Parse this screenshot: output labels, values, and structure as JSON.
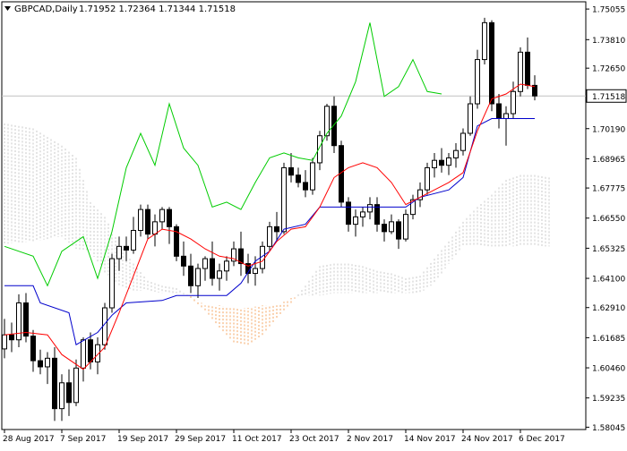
{
  "header": {
    "symbol_line": "GBPCAD,Daily",
    "ohlc": "1.71952 1.72364 1.71344 1.71518"
  },
  "colors": {
    "background": "#ffffff",
    "axis": "#000000",
    "bull_candle": "#ffffff",
    "bear_candle": "#000000",
    "tenkan": "#ff0000",
    "kijun": "#0000cc",
    "chikou": "#00cc00",
    "cloud_bull": "#f4a460",
    "cloud_bear": "#c8c8c8",
    "price_line": "#c0c0c0"
  },
  "chart_data": {
    "type": "candlestick",
    "symbol": "GBPCAD",
    "timeframe": "Daily",
    "current_price": "1.71518",
    "y_ticks": [
      "1.75055",
      "1.73810",
      "1.72650",
      "1.71518",
      "1.70190",
      "1.68965",
      "1.67775",
      "1.66550",
      "1.65325",
      "1.64100",
      "1.62910",
      "1.61685",
      "1.60460",
      "1.59235",
      "1.58045"
    ],
    "ylim": [
      1.5795,
      1.7535
    ],
    "x_ticks": [
      {
        "label": "28 Aug 2017",
        "index": 0
      },
      {
        "label": "7 Sep 2017",
        "index": 8
      },
      {
        "label": "19 Sep 2017",
        "index": 16
      },
      {
        "label": "29 Sep 2017",
        "index": 24
      },
      {
        "label": "11 Oct 2017",
        "index": 32
      },
      {
        "label": "23 Oct 2017",
        "index": 40
      },
      {
        "label": "2 Nov 2017",
        "index": 48
      },
      {
        "label": "14 Nov 2017",
        "index": 56
      },
      {
        "label": "24 Nov 2017",
        "index": 64
      },
      {
        "label": "6 Dec 2017",
        "index": 72
      }
    ],
    "candles": [
      [
        1.6123,
        1.6245,
        1.6085,
        1.618
      ],
      [
        1.618,
        1.623,
        1.611,
        1.616
      ],
      [
        1.616,
        1.6345,
        1.613,
        1.631
      ],
      [
        1.631,
        1.635,
        1.615,
        1.6175
      ],
      [
        1.6175,
        1.62,
        1.603,
        1.6075
      ],
      [
        1.6075,
        1.612,
        1.602,
        1.605
      ],
      [
        1.605,
        1.611,
        1.598,
        1.6085
      ],
      [
        1.6085,
        1.613,
        1.583,
        1.588
      ],
      [
        1.588,
        1.602,
        1.583,
        1.5985
      ],
      [
        1.5985,
        1.604,
        1.585,
        1.5905
      ],
      [
        1.5905,
        1.608,
        1.589,
        1.6045
      ],
      [
        1.6045,
        1.617,
        1.599,
        1.616
      ],
      [
        1.616,
        1.619,
        1.604,
        1.607
      ],
      [
        1.607,
        1.617,
        1.602,
        1.614
      ],
      [
        1.614,
        1.631,
        1.612,
        1.629
      ],
      [
        1.629,
        1.651,
        1.627,
        1.649
      ],
      [
        1.649,
        1.658,
        1.644,
        1.654
      ],
      [
        1.654,
        1.658,
        1.648,
        1.6525
      ],
      [
        1.6525,
        1.666,
        1.651,
        1.6605
      ],
      [
        1.6605,
        1.671,
        1.658,
        1.669
      ],
      [
        1.669,
        1.671,
        1.657,
        1.659
      ],
      [
        1.659,
        1.667,
        1.654,
        1.664
      ],
      [
        1.664,
        1.67,
        1.661,
        1.669
      ],
      [
        1.669,
        1.67,
        1.655,
        1.662
      ],
      [
        1.662,
        1.663,
        1.648,
        1.65
      ],
      [
        1.65,
        1.656,
        1.642,
        1.646
      ],
      [
        1.646,
        1.651,
        1.635,
        1.638
      ],
      [
        1.638,
        1.647,
        1.633,
        1.645
      ],
      [
        1.645,
        1.65,
        1.64,
        1.649
      ],
      [
        1.649,
        1.656,
        1.638,
        1.641
      ],
      [
        1.641,
        1.647,
        1.636,
        1.644
      ],
      [
        1.644,
        1.65,
        1.64,
        1.648
      ],
      [
        1.648,
        1.656,
        1.646,
        1.653
      ],
      [
        1.653,
        1.66,
        1.642,
        1.647
      ],
      [
        1.647,
        1.651,
        1.639,
        1.643
      ],
      [
        1.643,
        1.65,
        1.638,
        1.645
      ],
      [
        1.645,
        1.656,
        1.643,
        1.654
      ],
      [
        1.654,
        1.664,
        1.652,
        1.662
      ],
      [
        1.662,
        1.668,
        1.656,
        1.66
      ],
      [
        1.66,
        1.688,
        1.659,
        1.686
      ],
      [
        1.686,
        1.692,
        1.68,
        1.683
      ],
      [
        1.683,
        1.686,
        1.678,
        1.68
      ],
      [
        1.68,
        1.685,
        1.674,
        1.677
      ],
      [
        1.677,
        1.69,
        1.675,
        1.688
      ],
      [
        1.688,
        1.701,
        1.685,
        1.699
      ],
      [
        1.699,
        1.712,
        1.697,
        1.711
      ],
      [
        1.711,
        1.715,
        1.692,
        1.695
      ],
      [
        1.695,
        1.697,
        1.67,
        1.672
      ],
      [
        1.672,
        1.674,
        1.66,
        1.663
      ],
      [
        1.663,
        1.669,
        1.658,
        1.666
      ],
      [
        1.666,
        1.67,
        1.662,
        1.668
      ],
      [
        1.668,
        1.674,
        1.665,
        1.671
      ],
      [
        1.671,
        1.674,
        1.66,
        1.663
      ],
      [
        1.663,
        1.665,
        1.656,
        1.66
      ],
      [
        1.66,
        1.667,
        1.659,
        1.664
      ],
      [
        1.664,
        1.665,
        1.653,
        1.657
      ],
      [
        1.657,
        1.669,
        1.656,
        1.667
      ],
      [
        1.667,
        1.675,
        1.665,
        1.673
      ],
      [
        1.673,
        1.68,
        1.67,
        1.677
      ],
      [
        1.677,
        1.688,
        1.675,
        1.686
      ],
      [
        1.686,
        1.692,
        1.682,
        1.689
      ],
      [
        1.689,
        1.694,
        1.684,
        1.687
      ],
      [
        1.687,
        1.692,
        1.683,
        1.69
      ],
      [
        1.69,
        1.696,
        1.686,
        1.693
      ],
      [
        1.693,
        1.702,
        1.691,
        1.7
      ],
      [
        1.7,
        1.715,
        1.699,
        1.712
      ],
      [
        1.712,
        1.734,
        1.71,
        1.73
      ],
      [
        1.73,
        1.747,
        1.728,
        1.745
      ],
      [
        1.745,
        1.746,
        1.709,
        1.712
      ],
      [
        1.712,
        1.716,
        1.702,
        1.706
      ],
      [
        1.706,
        1.711,
        1.695,
        1.708
      ],
      [
        1.708,
        1.721,
        1.706,
        1.717
      ],
      [
        1.717,
        1.735,
        1.715,
        1.733
      ],
      [
        1.733,
        1.739,
        1.718,
        1.7195
      ],
      [
        1.7195,
        1.7236,
        1.7134,
        1.7152
      ]
    ],
    "tenkan": [
      [
        0,
        1.618
      ],
      [
        3,
        1.619
      ],
      [
        6,
        1.618
      ],
      [
        8,
        1.61
      ],
      [
        11,
        1.604
      ],
      [
        14,
        1.613
      ],
      [
        16,
        1.627
      ],
      [
        18,
        1.642
      ],
      [
        20,
        1.657
      ],
      [
        22,
        1.661
      ],
      [
        24,
        1.66
      ],
      [
        26,
        1.657
      ],
      [
        28,
        1.653
      ],
      [
        30,
        1.65
      ],
      [
        32,
        1.649
      ],
      [
        34,
        1.646
      ],
      [
        36,
        1.648
      ],
      [
        38,
        1.656
      ],
      [
        40,
        1.661
      ],
      [
        42,
        1.662
      ],
      [
        44,
        1.67
      ],
      [
        46,
        1.682
      ],
      [
        48,
        1.686
      ],
      [
        50,
        1.688
      ],
      [
        52,
        1.686
      ],
      [
        54,
        1.68
      ],
      [
        56,
        1.671
      ],
      [
        58,
        1.674
      ],
      [
        60,
        1.677
      ],
      [
        62,
        1.68
      ],
      [
        64,
        1.684
      ],
      [
        66,
        1.701
      ],
      [
        68,
        1.714
      ],
      [
        70,
        1.716
      ],
      [
        72,
        1.72
      ],
      [
        74,
        1.719
      ]
    ],
    "kijun": [
      [
        0,
        1.638
      ],
      [
        4,
        1.638
      ],
      [
        5,
        1.631
      ],
      [
        9,
        1.627
      ],
      [
        10,
        1.614
      ],
      [
        13,
        1.619
      ],
      [
        15,
        1.626
      ],
      [
        17,
        1.631
      ],
      [
        22,
        1.632
      ],
      [
        24,
        1.634
      ],
      [
        31,
        1.634
      ],
      [
        33,
        1.639
      ],
      [
        35,
        1.648
      ],
      [
        37,
        1.652
      ],
      [
        39,
        1.661
      ],
      [
        42,
        1.663
      ],
      [
        44,
        1.67
      ],
      [
        56,
        1.67
      ],
      [
        58,
        1.674
      ],
      [
        62,
        1.677
      ],
      [
        64,
        1.682
      ],
      [
        66,
        1.703
      ],
      [
        68,
        1.706
      ],
      [
        74,
        1.706
      ]
    ],
    "chikou": [
      [
        0,
        1.654
      ],
      [
        4,
        1.65
      ],
      [
        6,
        1.638
      ],
      [
        8,
        1.652
      ],
      [
        11,
        1.658
      ],
      [
        13,
        1.641
      ],
      [
        15,
        1.66
      ],
      [
        17,
        1.686
      ],
      [
        19,
        1.7
      ],
      [
        21,
        1.687
      ],
      [
        23,
        1.712
      ],
      [
        25,
        1.694
      ],
      [
        27,
        1.687
      ],
      [
        29,
        1.67
      ],
      [
        31,
        1.672
      ],
      [
        33,
        1.669
      ],
      [
        35,
        1.68
      ],
      [
        37,
        1.69
      ],
      [
        39,
        1.692
      ],
      [
        41,
        1.69
      ],
      [
        43,
        1.689
      ],
      [
        45,
        1.7
      ],
      [
        47,
        1.707
      ],
      [
        49,
        1.721
      ],
      [
        51,
        1.745
      ],
      [
        53,
        1.715
      ],
      [
        55,
        1.719
      ],
      [
        57,
        1.73
      ],
      [
        59,
        1.717
      ],
      [
        61,
        1.716
      ]
    ],
    "cloud_a": [
      [
        0,
        1.704
      ],
      [
        4,
        1.702
      ],
      [
        8,
        1.695
      ],
      [
        10,
        1.69
      ],
      [
        12,
        1.672
      ],
      [
        14,
        1.666
      ],
      [
        16,
        1.655
      ],
      [
        18,
        1.647
      ],
      [
        20,
        1.64
      ],
      [
        22,
        1.638
      ],
      [
        24,
        1.637
      ],
      [
        26,
        1.633
      ],
      [
        28,
        1.628
      ],
      [
        30,
        1.621
      ],
      [
        32,
        1.615
      ],
      [
        34,
        1.614
      ],
      [
        36,
        1.618
      ],
      [
        38,
        1.625
      ],
      [
        40,
        1.631
      ],
      [
        42,
        1.638
      ],
      [
        44,
        1.646
      ],
      [
        46,
        1.647
      ],
      [
        48,
        1.647
      ],
      [
        50,
        1.646
      ],
      [
        52,
        1.644
      ],
      [
        54,
        1.643
      ],
      [
        56,
        1.641
      ],
      [
        58,
        1.642
      ],
      [
        60,
        1.649
      ],
      [
        62,
        1.656
      ],
      [
        64,
        1.664
      ],
      [
        66,
        1.67
      ],
      [
        68,
        1.675
      ],
      [
        70,
        1.681
      ],
      [
        72,
        1.683
      ],
      [
        74,
        1.683
      ],
      [
        76,
        1.682
      ]
    ],
    "cloud_b": [
      [
        0,
        1.655
      ],
      [
        4,
        1.656
      ],
      [
        8,
        1.658
      ],
      [
        10,
        1.653
      ],
      [
        12,
        1.652
      ],
      [
        14,
        1.643
      ],
      [
        16,
        1.638
      ],
      [
        18,
        1.636
      ],
      [
        20,
        1.636
      ],
      [
        22,
        1.635
      ],
      [
        24,
        1.635
      ],
      [
        26,
        1.634
      ],
      [
        28,
        1.63
      ],
      [
        30,
        1.63
      ],
      [
        32,
        1.629
      ],
      [
        34,
        1.629
      ],
      [
        36,
        1.63
      ],
      [
        38,
        1.63
      ],
      [
        40,
        1.633
      ],
      [
        42,
        1.634
      ],
      [
        44,
        1.634
      ],
      [
        46,
        1.635
      ],
      [
        48,
        1.635
      ],
      [
        50,
        1.635
      ],
      [
        52,
        1.635
      ],
      [
        54,
        1.635
      ],
      [
        56,
        1.635
      ],
      [
        58,
        1.635
      ],
      [
        60,
        1.639
      ],
      [
        62,
        1.647
      ],
      [
        64,
        1.654
      ],
      [
        66,
        1.654
      ],
      [
        68,
        1.654
      ],
      [
        70,
        1.654
      ],
      [
        72,
        1.654
      ],
      [
        74,
        1.654
      ],
      [
        76,
        1.654
      ]
    ]
  }
}
